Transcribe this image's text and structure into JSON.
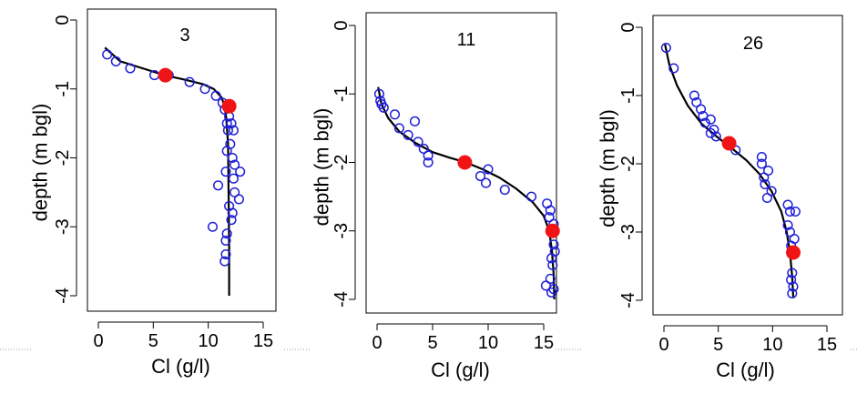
{
  "chart_data": [
    {
      "type": "line",
      "title": "3",
      "xlabel": "Cl (g/l)",
      "ylabel": "depth (m bgl)",
      "xlim": [
        0,
        16
      ],
      "ylim": [
        -4,
        0
      ],
      "xticks": [
        0,
        5,
        10,
        15
      ],
      "yticks": [
        0,
        -1,
        -2,
        -3,
        -4
      ],
      "grid": false,
      "series": [
        {
          "kind": "observed",
          "marker": "open-circle",
          "color": "#1f1fd6",
          "x": [
            0.8,
            1.6,
            2.9,
            5.1,
            6.4,
            8.3,
            9.7,
            10.7,
            11.3,
            11.5,
            11.9,
            11.7,
            12.1,
            11.8,
            12.3,
            12.0,
            11.7,
            12.2,
            12.4,
            12.9,
            11.6,
            12.3,
            10.9,
            12.4,
            12.8,
            11.9,
            12.2,
            12.1,
            10.4,
            11.7,
            11.6,
            11.6,
            11.5
          ],
          "y": [
            -0.5,
            -0.6,
            -0.7,
            -0.8,
            -0.8,
            -0.9,
            -1.0,
            -1.1,
            -1.2,
            -1.3,
            -1.4,
            -1.5,
            -1.5,
            -1.6,
            -1.6,
            -1.8,
            -1.9,
            -2.0,
            -2.1,
            -2.2,
            -2.2,
            -2.3,
            -2.4,
            -2.5,
            -2.6,
            -2.7,
            -2.8,
            -2.9,
            -3.0,
            -3.1,
            -3.2,
            -3.4,
            -3.5
          ]
        },
        {
          "kind": "fitted",
          "style": "solid",
          "color": "#000000",
          "x": [
            0.6,
            2.0,
            4.0,
            6.0,
            8.0,
            9.5,
            10.5,
            11.2,
            11.5,
            11.65,
            11.8,
            11.85,
            11.9,
            11.9
          ],
          "y": [
            -0.4,
            -0.6,
            -0.7,
            -0.8,
            -0.87,
            -0.93,
            -1.0,
            -1.12,
            -1.25,
            -1.45,
            -1.8,
            -2.5,
            -3.3,
            -4.0
          ]
        },
        {
          "kind": "highlight",
          "marker": "filled-circle",
          "color": "#f01414",
          "x": [
            6.1,
            11.9
          ],
          "y": [
            -0.8,
            -1.25
          ]
        }
      ]
    },
    {
      "type": "line",
      "title": "11",
      "xlabel": "Cl (g/l)",
      "ylabel": "depth (m bgl)",
      "xlim": [
        0,
        16
      ],
      "ylim": [
        -4,
        0
      ],
      "xticks": [
        0,
        5,
        10,
        15
      ],
      "yticks": [
        0,
        -1,
        -2,
        -3,
        -4
      ],
      "grid": false,
      "series": [
        {
          "kind": "observed",
          "marker": "open-circle",
          "color": "#1f1fd6",
          "x": [
            0.2,
            0.3,
            0.4,
            0.6,
            1.6,
            2.0,
            3.4,
            2.8,
            3.7,
            4.2,
            4.6,
            4.6,
            8.0,
            9.3,
            10.0,
            9.8,
            11.5,
            13.9,
            15.3,
            15.6,
            15.5,
            15.9,
            15.8,
            15.9,
            16.0,
            15.7,
            15.8,
            15.6,
            15.2,
            15.9,
            15.7
          ],
          "y": [
            -1.0,
            -1.1,
            -1.15,
            -1.2,
            -1.3,
            -1.5,
            -1.4,
            -1.6,
            -1.7,
            -1.8,
            -1.9,
            -2.0,
            -2.0,
            -2.2,
            -2.1,
            -2.3,
            -2.4,
            -2.5,
            -2.6,
            -2.7,
            -2.8,
            -2.9,
            -3.0,
            -3.2,
            -3.3,
            -3.4,
            -3.5,
            -3.7,
            -3.8,
            -3.85,
            -3.9
          ]
        },
        {
          "kind": "fitted",
          "style": "solid",
          "color": "#000000",
          "x": [
            0.1,
            0.4,
            1.0,
            2.0,
            3.5,
            5.0,
            6.5,
            8.0,
            9.5,
            11.0,
            12.5,
            14.0,
            15.0,
            15.5,
            15.75,
            15.9,
            15.95
          ],
          "y": [
            -0.9,
            -1.15,
            -1.35,
            -1.55,
            -1.72,
            -1.85,
            -1.93,
            -2.0,
            -2.1,
            -2.22,
            -2.38,
            -2.58,
            -2.78,
            -3.0,
            -3.3,
            -3.65,
            -4.0
          ]
        },
        {
          "kind": "highlight",
          "marker": "filled-circle",
          "color": "#f01414",
          "x": [
            7.9,
            15.8
          ],
          "y": [
            -2.0,
            -3.0
          ]
        }
      ]
    },
    {
      "type": "line",
      "title": "26",
      "xlabel": "Cl (g/l)",
      "ylabel": "depth (m bgl)",
      "xlim": [
        0,
        16
      ],
      "ylim": [
        -4,
        0
      ],
      "xticks": [
        0,
        5,
        10,
        15
      ],
      "yticks": [
        0,
        -1,
        -2,
        -3,
        -4
      ],
      "grid": false,
      "series": [
        {
          "kind": "observed",
          "marker": "open-circle",
          "color": "#1f1fd6",
          "x": [
            0.2,
            0.9,
            2.8,
            3.0,
            3.4,
            3.6,
            4.3,
            3.8,
            4.6,
            4.3,
            4.8,
            5.9,
            6.6,
            9.0,
            9.0,
            9.6,
            9.2,
            9.3,
            9.9,
            9.5,
            11.4,
            11.6,
            12.1,
            11.4,
            11.6,
            12.0,
            11.7,
            11.8,
            11.7,
            11.9,
            11.8
          ],
          "y": [
            -0.3,
            -0.6,
            -1.0,
            -1.1,
            -1.2,
            -1.3,
            -1.35,
            -1.4,
            -1.5,
            -1.55,
            -1.6,
            -1.7,
            -1.8,
            -1.9,
            -2.0,
            -2.1,
            -2.2,
            -2.3,
            -2.4,
            -2.5,
            -2.6,
            -2.7,
            -2.7,
            -2.9,
            -3.0,
            -3.1,
            -3.2,
            -3.6,
            -3.7,
            -3.8,
            -3.9
          ]
        },
        {
          "kind": "fitted",
          "style": "solid",
          "color": "#000000",
          "x": [
            0.1,
            0.5,
            1.2,
            2.2,
            3.5,
            5.0,
            6.3,
            7.6,
            8.8,
            9.9,
            10.8,
            11.3,
            11.6,
            11.8,
            11.9
          ],
          "y": [
            -0.25,
            -0.55,
            -0.85,
            -1.15,
            -1.42,
            -1.62,
            -1.78,
            -1.95,
            -2.15,
            -2.4,
            -2.7,
            -3.0,
            -3.3,
            -3.65,
            -3.95
          ]
        },
        {
          "kind": "highlight",
          "marker": "filled-circle",
          "color": "#f01414",
          "x": [
            6.0,
            11.9
          ],
          "y": [
            -1.7,
            -3.3
          ]
        }
      ]
    }
  ]
}
